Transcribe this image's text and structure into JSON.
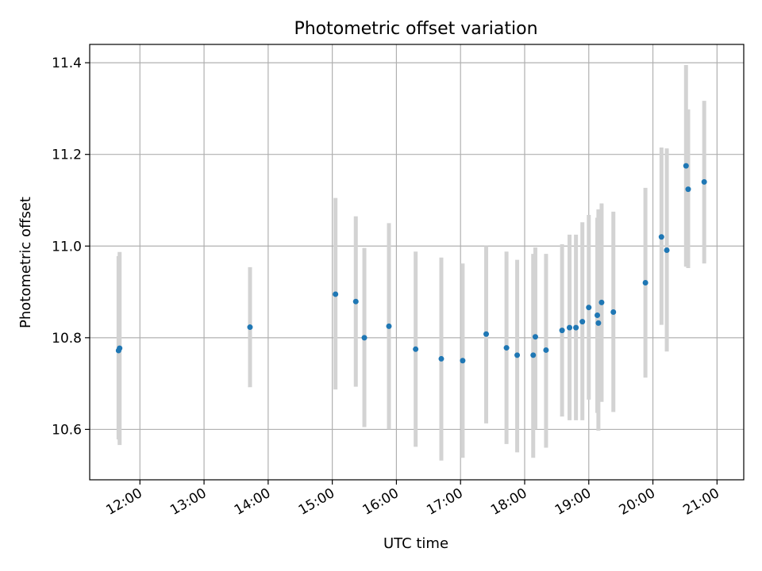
{
  "chart_data": {
    "type": "scatter",
    "title": "Photometric offset variation",
    "xlabel": "UTC time",
    "ylabel": "Photometric offset",
    "xlim": [
      "11:13",
      "21:25"
    ],
    "ylim": [
      10.49,
      11.44
    ],
    "x_ticks": [
      "12:00",
      "13:00",
      "14:00",
      "15:00",
      "16:00",
      "17:00",
      "18:00",
      "19:00",
      "20:00",
      "21:00"
    ],
    "y_ticks": [
      "10.6",
      "10.8",
      "11.0",
      "11.2",
      "11.4"
    ],
    "grid": true,
    "colors": {
      "point": "#1f77b4",
      "errorbar": "#d3d3d3",
      "grid": "#b0b0b0"
    },
    "series": [
      {
        "points": [
          {
            "x": "11:40",
            "y": 10.772,
            "ylow": 10.578,
            "yhigh": 10.978
          },
          {
            "x": "11:41",
            "y": 10.777,
            "ylow": 10.566,
            "yhigh": 10.987
          },
          {
            "x": "13:43",
            "y": 10.823,
            "ylow": 10.692,
            "yhigh": 10.954
          },
          {
            "x": "15:03",
            "y": 10.895,
            "ylow": 10.687,
            "yhigh": 11.105
          },
          {
            "x": "15:22",
            "y": 10.879,
            "ylow": 10.693,
            "yhigh": 11.065
          },
          {
            "x": "15:30",
            "y": 10.8,
            "ylow": 10.605,
            "yhigh": 10.996
          },
          {
            "x": "15:53",
            "y": 10.825,
            "ylow": 10.6,
            "yhigh": 11.05
          },
          {
            "x": "16:18",
            "y": 10.775,
            "ylow": 10.562,
            "yhigh": 10.988
          },
          {
            "x": "16:42",
            "y": 10.754,
            "ylow": 10.532,
            "yhigh": 10.975
          },
          {
            "x": "17:02",
            "y": 10.75,
            "ylow": 10.538,
            "yhigh": 10.962
          },
          {
            "x": "17:24",
            "y": 10.808,
            "ylow": 10.613,
            "yhigh": 11.0
          },
          {
            "x": "17:43",
            "y": 10.778,
            "ylow": 10.568,
            "yhigh": 10.988
          },
          {
            "x": "17:53",
            "y": 10.762,
            "ylow": 10.55,
            "yhigh": 10.97
          },
          {
            "x": "18:08",
            "y": 10.762,
            "ylow": 10.538,
            "yhigh": 10.983
          },
          {
            "x": "18:10",
            "y": 10.802,
            "ylow": 10.6,
            "yhigh": 10.997
          },
          {
            "x": "18:20",
            "y": 10.773,
            "ylow": 10.56,
            "yhigh": 10.983
          },
          {
            "x": "18:35",
            "y": 10.816,
            "ylow": 10.628,
            "yhigh": 11.004
          },
          {
            "x": "18:42",
            "y": 10.822,
            "ylow": 10.62,
            "yhigh": 11.025
          },
          {
            "x": "18:48",
            "y": 10.822,
            "ylow": 10.62,
            "yhigh": 11.025
          },
          {
            "x": "18:54",
            "y": 10.835,
            "ylow": 10.62,
            "yhigh": 11.052
          },
          {
            "x": "19:00",
            "y": 10.866,
            "ylow": 10.665,
            "yhigh": 11.068
          },
          {
            "x": "19:08",
            "y": 10.849,
            "ylow": 10.636,
            "yhigh": 11.062
          },
          {
            "x": "19:09",
            "y": 10.832,
            "ylow": 10.597,
            "yhigh": 11.08
          },
          {
            "x": "19:12",
            "y": 10.877,
            "ylow": 10.66,
            "yhigh": 11.093
          },
          {
            "x": "19:23",
            "y": 10.856,
            "ylow": 10.638,
            "yhigh": 11.075
          },
          {
            "x": "19:53",
            "y": 10.92,
            "ylow": 10.713,
            "yhigh": 11.127
          },
          {
            "x": "20:08",
            "y": 11.02,
            "ylow": 10.828,
            "yhigh": 11.215
          },
          {
            "x": "20:13",
            "y": 10.991,
            "ylow": 10.77,
            "yhigh": 11.213
          },
          {
            "x": "20:31",
            "y": 11.175,
            "ylow": 10.955,
            "yhigh": 11.395
          },
          {
            "x": "20:33",
            "y": 11.124,
            "ylow": 10.952,
            "yhigh": 11.298
          },
          {
            "x": "20:48",
            "y": 11.14,
            "ylow": 10.962,
            "yhigh": 11.317
          }
        ]
      }
    ]
  }
}
